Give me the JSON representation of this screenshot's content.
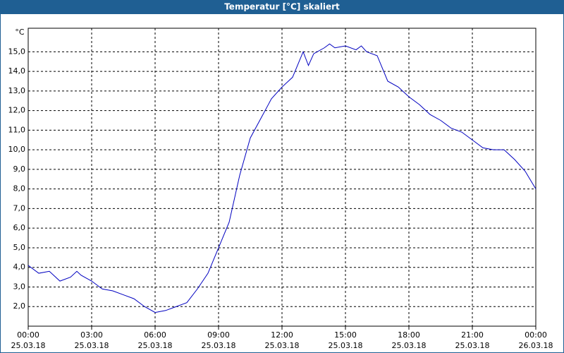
{
  "chart_data": {
    "type": "line",
    "title": "Temperatur [°C] skaliert",
    "y_unit": "°C",
    "x": [
      0,
      0.5,
      1,
      1.5,
      2,
      2.3,
      2.5,
      3,
      3.5,
      4,
      4.5,
      5,
      5.5,
      6,
      6.5,
      7,
      7.5,
      8,
      8.5,
      9,
      9.5,
      10,
      10.5,
      11,
      11.5,
      12,
      12.5,
      13,
      13.25,
      13.5,
      14,
      14.25,
      14.5,
      15,
      15.5,
      15.75,
      16,
      16.5,
      17,
      17.5,
      18,
      18.5,
      19,
      19.5,
      20,
      20.5,
      21,
      21.5,
      22,
      22.5,
      23,
      23.5,
      24
    ],
    "series": [
      {
        "name": "Temperatur",
        "color": "#0000c0",
        "values": [
          4.1,
          3.7,
          3.8,
          3.3,
          3.5,
          3.8,
          3.6,
          3.3,
          2.9,
          2.8,
          2.6,
          2.4,
          2.0,
          1.7,
          1.8,
          2.0,
          2.2,
          2.9,
          3.7,
          5.0,
          6.3,
          8.7,
          10.6,
          11.6,
          12.6,
          13.2,
          13.7,
          15.0,
          14.3,
          14.9,
          15.2,
          15.4,
          15.2,
          15.3,
          15.1,
          15.3,
          15.0,
          14.8,
          13.5,
          13.2,
          12.7,
          12.3,
          11.8,
          11.5,
          11.1,
          10.9,
          10.5,
          10.1,
          10.0,
          10.0,
          9.5,
          8.9,
          8.0
        ]
      }
    ],
    "xlim": [
      0,
      24
    ],
    "xticks": [
      {
        "value": 0,
        "label": "00:00"
      },
      {
        "value": 3,
        "label": "03:00"
      },
      {
        "value": 6,
        "label": "06:00"
      },
      {
        "value": 9,
        "label": "09:00"
      },
      {
        "value": 12,
        "label": "12:00"
      },
      {
        "value": 15,
        "label": "15:00"
      },
      {
        "value": 18,
        "label": "18:00"
      },
      {
        "value": 21,
        "label": "21:00"
      },
      {
        "value": 24,
        "label": "00:00"
      }
    ],
    "xtick_dates": [
      "25.03.18",
      "25.03.18",
      "25.03.18",
      "25.03.18",
      "25.03.18",
      "25.03.18",
      "25.03.18",
      "25.03.18",
      "26.03.18"
    ],
    "ylim": [
      1.0,
      16.2
    ],
    "yticks": [
      {
        "value": 2,
        "label": "2,0"
      },
      {
        "value": 3,
        "label": "3,0"
      },
      {
        "value": 4,
        "label": "4,0"
      },
      {
        "value": 5,
        "label": "5,0"
      },
      {
        "value": 6,
        "label": "6,0"
      },
      {
        "value": 7,
        "label": "7,0"
      },
      {
        "value": 8,
        "label": "8,0"
      },
      {
        "value": 9,
        "label": "9,0"
      },
      {
        "value": 10,
        "label": "10,0"
      },
      {
        "value": 11,
        "label": "11,0"
      },
      {
        "value": 12,
        "label": "12,0"
      },
      {
        "value": 13,
        "label": "13,0"
      },
      {
        "value": 14,
        "label": "14,0"
      },
      {
        "value": 15,
        "label": "15,0"
      }
    ],
    "grid": true
  }
}
